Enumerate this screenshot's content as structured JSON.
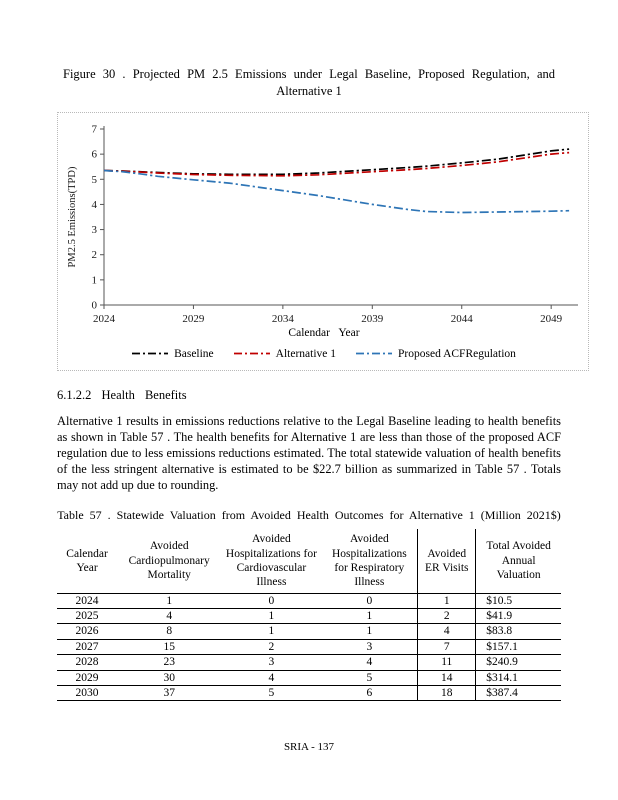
{
  "page": {
    "footer": "SRIA - 137"
  },
  "figure": {
    "caption": "Figure 30 . Projected PM 2.5 Emissions under Legal Baseline, Proposed Regulation, and Alternative 1"
  },
  "chart_data": {
    "type": "line",
    "title": "",
    "xlabel": "Calendar Year",
    "ylabel": "PM2.5 Emissions(TPD)",
    "xlim": [
      2024,
      2050.5
    ],
    "ylim": [
      0,
      7
    ],
    "xticks": [
      2024,
      2029,
      2034,
      2039,
      2044,
      2049
    ],
    "yticks": [
      0,
      1,
      2,
      3,
      4,
      5,
      6,
      7
    ],
    "grid": false,
    "legend_position": "bottom",
    "x": [
      2024,
      2025,
      2026,
      2027,
      2029,
      2031,
      2034,
      2036,
      2039,
      2041,
      2042,
      2044,
      2046,
      2049,
      2050
    ],
    "series": [
      {
        "name": "Baseline",
        "color": "#000000",
        "values": [
          5.35,
          5.33,
          5.3,
          5.27,
          5.22,
          5.2,
          5.2,
          5.25,
          5.38,
          5.47,
          5.52,
          5.65,
          5.8,
          6.13,
          6.2
        ]
      },
      {
        "name": "Alternative 1",
        "color": "#c00000",
        "values": [
          5.35,
          5.32,
          5.29,
          5.25,
          5.19,
          5.16,
          5.14,
          5.18,
          5.3,
          5.38,
          5.43,
          5.55,
          5.69,
          6.0,
          6.06
        ]
      },
      {
        "name": "Proposed ACFRegulation",
        "color": "#2e75b6",
        "values": [
          5.35,
          5.3,
          5.22,
          5.12,
          4.98,
          4.85,
          4.55,
          4.35,
          4.0,
          3.8,
          3.72,
          3.68,
          3.7,
          3.73,
          3.75
        ]
      }
    ]
  },
  "section": {
    "heading": "6.1.2.2 Health Benefits",
    "paragraph": "Alternative 1 results in emissions reductions relative to the Legal Baseline leading to health benefits as shown in Table 57 . The health benefits for Alternative 1 are less than those of the proposed ACF regulation due to less emissions reductions estimated. The total statewide valuation of health benefits of the less stringent alternative is estimated to be $22.7 billion as summarized in Table 57 . Totals may not add up due to rounding.",
    "total_valuation": "$22.7 billion"
  },
  "table": {
    "caption": "Table 57 . Statewide Valuation from Avoided Health Outcomes for Alternative 1 (Million 2021$)",
    "headers": [
      "Calendar Year",
      "Avoided Cardiopulmonary Mortality",
      "Avoided Hospitalizations for Cardiovascular Illness",
      "Avoided Hospitalizations for Respiratory Illness",
      "Avoided ER Visits",
      "Total Avoided Annual Valuation"
    ],
    "rows": [
      [
        "2024",
        "1",
        "0",
        "0",
        "1",
        "$10.5"
      ],
      [
        "2025",
        "4",
        "1",
        "1",
        "2",
        "$41.9"
      ],
      [
        "2026",
        "8",
        "1",
        "1",
        "4",
        "$83.8"
      ],
      [
        "2027",
        "15",
        "2",
        "3",
        "7",
        "$157.1"
      ],
      [
        "2028",
        "23",
        "3",
        "4",
        "11",
        "$240.9"
      ],
      [
        "2029",
        "30",
        "4",
        "5",
        "14",
        "$314.1"
      ],
      [
        "2030",
        "37",
        "5",
        "6",
        "18",
        "$387.4"
      ]
    ]
  }
}
